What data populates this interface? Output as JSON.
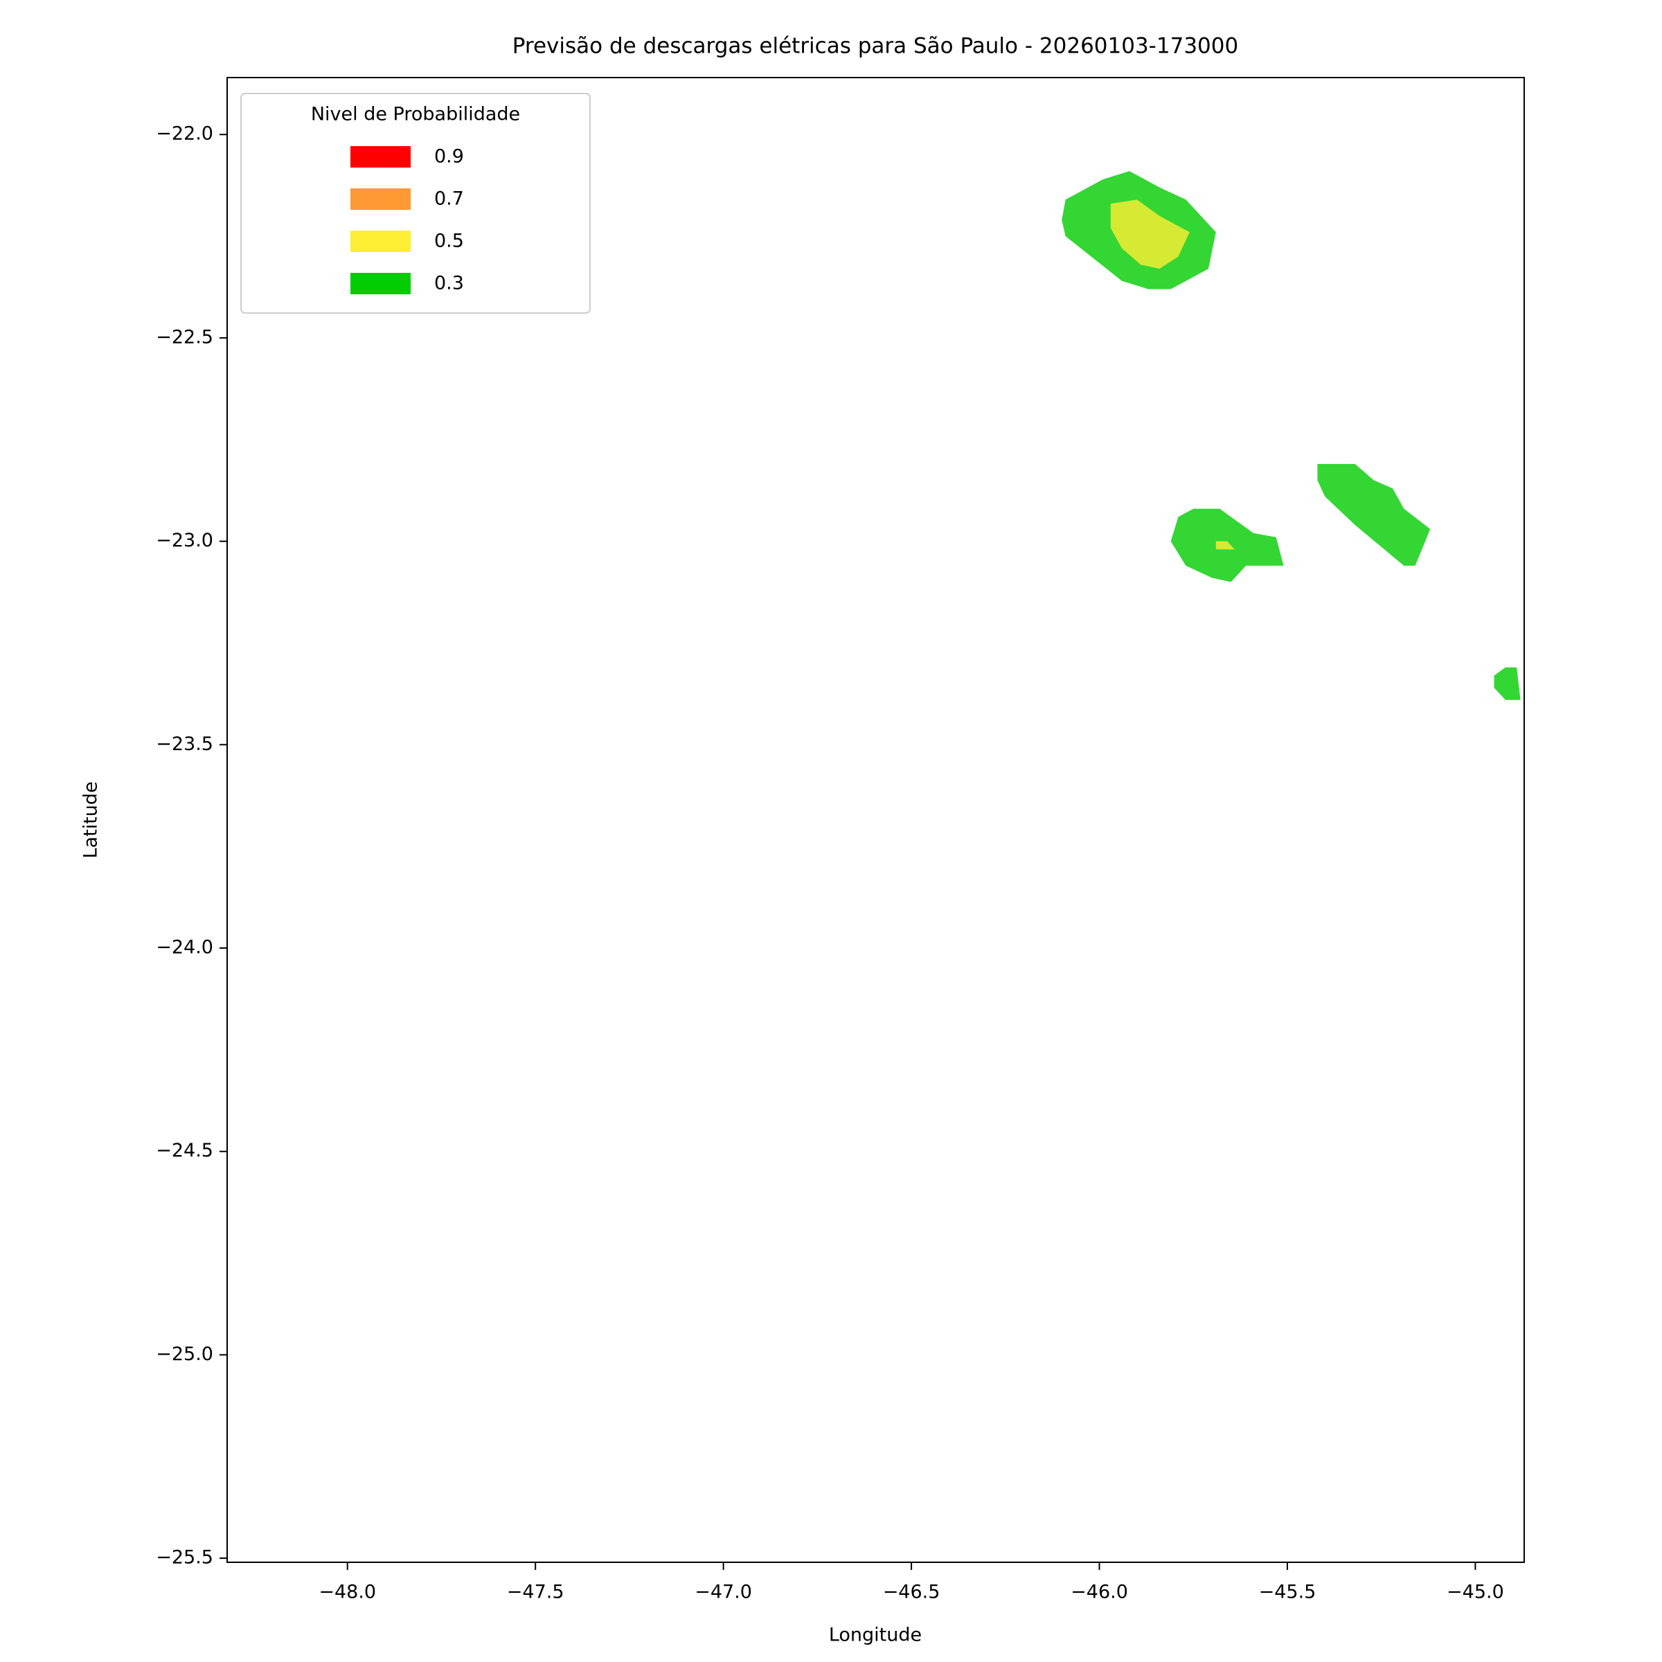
{
  "chart_data": {
    "type": "contour",
    "title": "Previsão de descargas elétricas para São Paulo - 20260103-173000",
    "x_label": "Longitude",
    "y_label": "Latitude",
    "xlim": [
      -48.32,
      -44.87
    ],
    "ylim": [
      -25.51,
      -21.86
    ],
    "xticks": [
      {
        "value": -48.0,
        "label": "−48.0"
      },
      {
        "value": -47.5,
        "label": "−47.5"
      },
      {
        "value": -47.0,
        "label": "−47.0"
      },
      {
        "value": -46.5,
        "label": "−46.5"
      },
      {
        "value": -46.0,
        "label": "−46.0"
      },
      {
        "value": -45.5,
        "label": "−45.5"
      },
      {
        "value": -45.0,
        "label": "−45.0"
      }
    ],
    "yticks": [
      {
        "value": -22.0,
        "label": "−22.0"
      },
      {
        "value": -22.5,
        "label": "−22.5"
      },
      {
        "value": -23.0,
        "label": "−23.0"
      },
      {
        "value": -23.5,
        "label": "−23.5"
      },
      {
        "value": -24.0,
        "label": "−24.0"
      },
      {
        "value": -24.5,
        "label": "−24.5"
      },
      {
        "value": -25.0,
        "label": "−25.0"
      },
      {
        "value": -25.5,
        "label": "−25.5"
      }
    ],
    "legend_title": "Nivel de Probabilidade",
    "legend": "upper left",
    "alpha": 0.8,
    "levels": [
      {
        "name": "0.9",
        "color": "#ff0000",
        "regions": []
      },
      {
        "name": "0.7",
        "color": "#ff9933",
        "regions": []
      },
      {
        "name": "0.5",
        "color": "#ffee33",
        "regions": [
          {
            "x": [
              -45.97,
              -45.9,
              -45.84,
              -45.76,
              -45.79,
              -45.84,
              -45.89,
              -45.94,
              -45.97
            ],
            "y": [
              -22.17,
              -22.16,
              -22.2,
              -22.24,
              -22.3,
              -22.33,
              -22.32,
              -22.28,
              -22.23
            ]
          },
          {
            "x": [
              -45.69,
              -45.66,
              -45.64,
              -45.69
            ],
            "y": [
              -23.0,
              -23.0,
              -23.02,
              -23.02
            ]
          }
        ]
      },
      {
        "name": "0.3",
        "color": "#00cc00",
        "regions": [
          {
            "x": [
              -46.09,
              -46.07,
              -45.99,
              -45.92,
              -45.84,
              -45.77,
              -45.69,
              -45.71,
              -45.75,
              -45.81,
              -45.87,
              -45.94,
              -46.09,
              -46.1
            ],
            "y": [
              -22.16,
              -22.15,
              -22.11,
              -22.09,
              -22.13,
              -22.16,
              -22.24,
              -22.33,
              -22.35,
              -22.38,
              -22.38,
              -22.36,
              -22.25,
              -22.21
            ]
          },
          {
            "x": [
              -45.79,
              -45.75,
              -45.68,
              -45.59,
              -45.53,
              -45.51,
              -45.61,
              -45.65,
              -45.7,
              -45.77,
              -45.81
            ],
            "y": [
              -22.94,
              -22.92,
              -22.92,
              -22.98,
              -22.99,
              -23.06,
              -23.06,
              -23.1,
              -23.09,
              -23.06,
              -23.0
            ]
          },
          {
            "x": [
              -45.42,
              -45.32,
              -45.27,
              -45.22,
              -45.19,
              -45.12,
              -45.16,
              -45.19,
              -45.32,
              -45.4,
              -45.42
            ],
            "y": [
              -22.81,
              -22.81,
              -22.85,
              -22.87,
              -22.92,
              -22.97,
              -23.06,
              -23.06,
              -22.96,
              -22.89,
              -22.85
            ]
          },
          {
            "x": [
              -44.95,
              -44.92,
              -44.89,
              -44.88,
              -44.92,
              -44.95
            ],
            "y": [
              -23.33,
              -23.31,
              -23.31,
              -23.39,
              -23.39,
              -23.36
            ]
          }
        ]
      }
    ]
  }
}
